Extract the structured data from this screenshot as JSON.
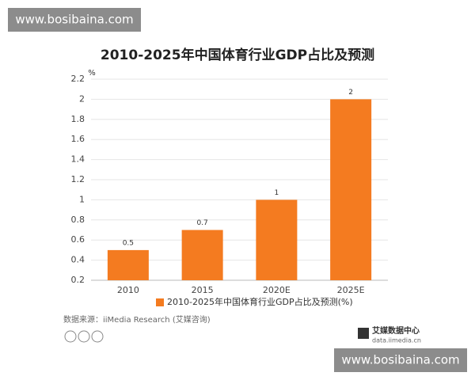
{
  "chart_data": {
    "type": "bar",
    "title": "2010-2025年中国体育行业GDP占比及预测",
    "y_unit": "%",
    "categories": [
      "2010",
      "2015",
      "2020E",
      "2025E"
    ],
    "series": [
      {
        "name": "2010-2025年中国体育行业GDP占比及预测(%)",
        "color": "#f47b20",
        "values": [
          0.5,
          0.7,
          1,
          2
        ]
      }
    ],
    "ylim": [
      0.2,
      2.2
    ],
    "yticks": [
      0.2,
      0.4,
      0.6,
      0.8,
      1,
      1.2,
      1.4,
      1.6,
      1.8,
      2,
      2.2
    ],
    "grid": true,
    "legend": "bottom"
  },
  "source": "数据来源：iiMedia Research (艾媒咨询)",
  "logo": {
    "name": "艾媒数据中心",
    "url": "data.iimedia.cn"
  },
  "watermark": [
    "www.bosibaina.com",
    "www.bosibaina.com"
  ]
}
